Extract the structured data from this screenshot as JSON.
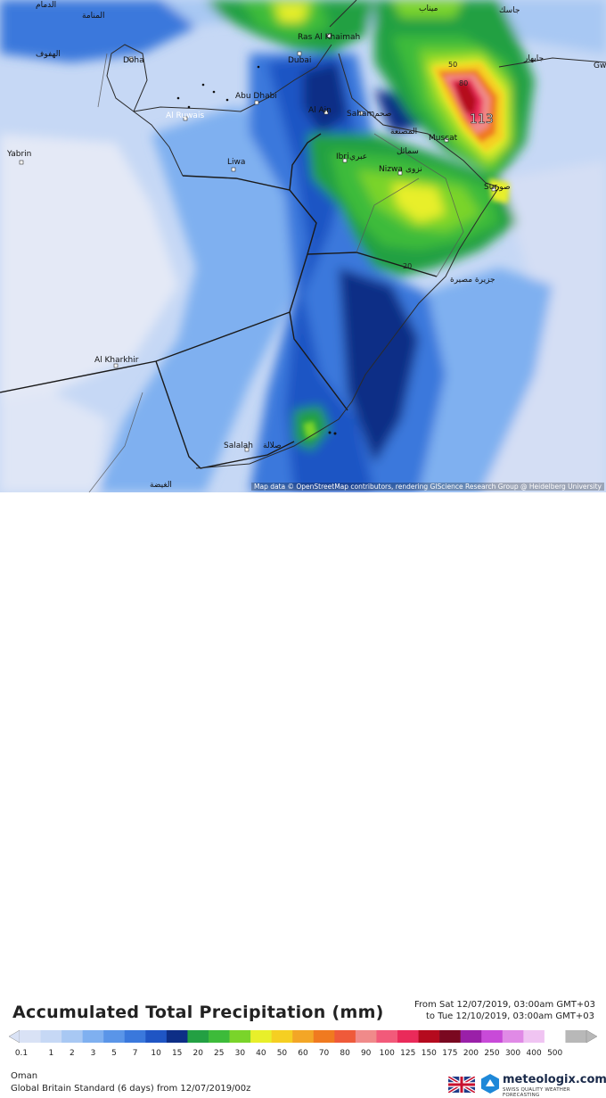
{
  "map": {
    "attribution": "Map data © OpenStreetMap contributors, rendering GIScience Research Group @ Heidelberg University",
    "peak_value": "113",
    "contour_labels": [
      "80",
      "50",
      "20"
    ],
    "cities": [
      {
        "name": "Doha"
      },
      {
        "name": "Dubai"
      },
      {
        "name": "Abu Dhabi"
      },
      {
        "name": "Ras Al Khaimah"
      },
      {
        "name": "Al Ain"
      },
      {
        "name": "Saham"
      },
      {
        "name": "Muscat"
      },
      {
        "name": "Ibri"
      },
      {
        "name": "Nizwa"
      },
      {
        "name": "Sur"
      },
      {
        "name": "Liwa"
      },
      {
        "name": "Yabrin"
      },
      {
        "name": "Al Ruwais"
      },
      {
        "name": "Al Kharkhir"
      },
      {
        "name": "Salalah"
      },
      {
        "name": "Gw"
      }
    ],
    "arabic_labels": [
      "الدمام",
      "المنامة",
      "الهفوف",
      "صحم",
      "المصنعة",
      "سمائل",
      "عبري",
      "نزوى",
      "صور",
      "صلالة",
      "الغيضة",
      "جاسك",
      "جابهار",
      "ميناب",
      "جزيرة مصيرة"
    ]
  },
  "legend": {
    "title": "Accumulated Total Precipitation (mm)",
    "from": "From Sat 12/07/2019, 03:00am GMT+03",
    "to": "to Tue 12/10/2019, 03:00am GMT+03",
    "unit": "mm",
    "ticks": [
      "0.1",
      "1",
      "2",
      "3",
      "5",
      "7",
      "10",
      "15",
      "20",
      "25",
      "30",
      "40",
      "50",
      "60",
      "70",
      "80",
      "90",
      "100",
      "125",
      "150",
      "175",
      "200",
      "250",
      "300",
      "400",
      "500"
    ],
    "colors": [
      "#d9e2f5",
      "#c6d8f5",
      "#a8c8f3",
      "#7fb0f0",
      "#5a95e8",
      "#3a78dc",
      "#1f55c4",
      "#0d2e86",
      "#23a043",
      "#3dbb3a",
      "#7ad42a",
      "#e8ef2a",
      "#f5cf22",
      "#f3a626",
      "#f07a20",
      "#ef5a3a",
      "#f08a8a",
      "#f25a7a",
      "#ea2a5a",
      "#b50a1e",
      "#7a0820",
      "#9a20a8",
      "#c84ad8",
      "#e08ae6",
      "#f0c4f2",
      "#ffffff",
      "#b8b8b8"
    ]
  },
  "footer": {
    "region": "Oman",
    "model": "Global Britain Standard (6 days)  from  12/07/2019/00z",
    "brand": "meteologix.com",
    "tagline": "SWISS QUALITY WEATHER FORECASTING"
  }
}
